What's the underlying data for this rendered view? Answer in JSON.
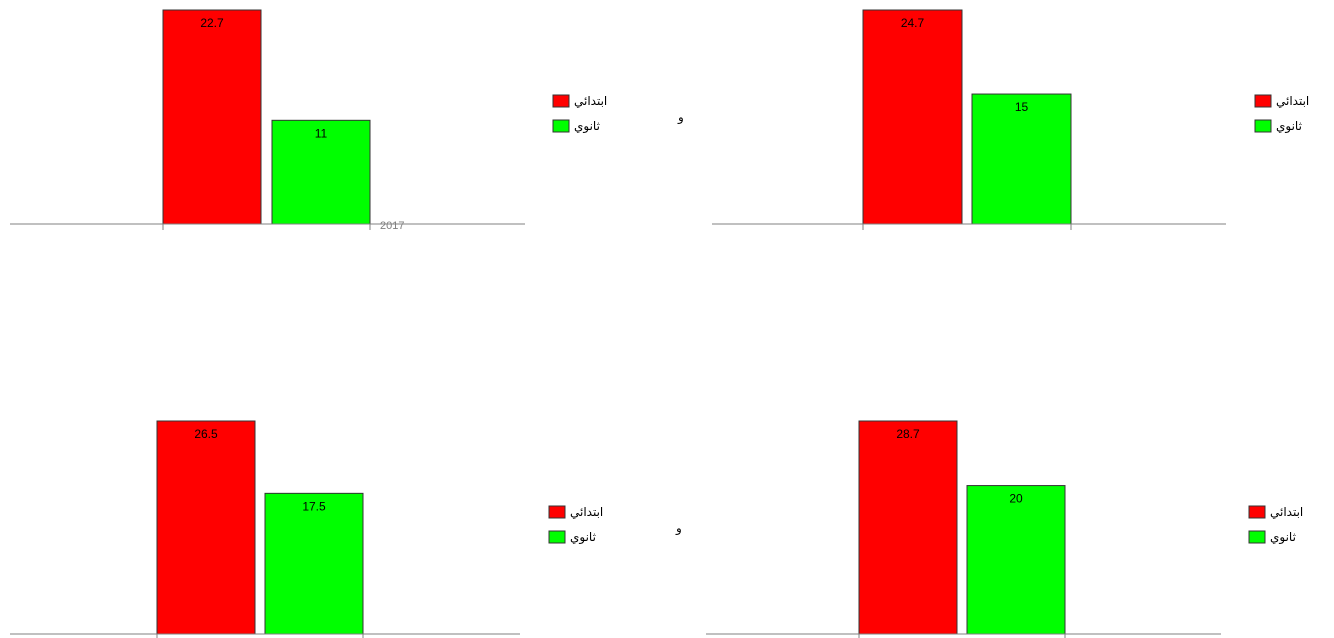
{
  "chart_data": [
    {
      "type": "bar",
      "categories": [
        ""
      ],
      "series": [
        {
          "name": "ابتدائي",
          "values": [
            22.7
          ],
          "color": "#ff0000"
        },
        {
          "name": "ثانوي",
          "values": [
            11
          ],
          "color": "#00ff00"
        }
      ],
      "x_tick_labels": [
        "2017"
      ],
      "value_labels": [
        "22.7",
        "11"
      ],
      "legend_position": "right",
      "stray_mark": "و",
      "grid": false
    },
    {
      "type": "bar",
      "categories": [
        ""
      ],
      "series": [
        {
          "name": "ابتدائي",
          "values": [
            24.7
          ],
          "color": "#ff0000"
        },
        {
          "name": "ثانوي",
          "values": [
            15
          ],
          "color": "#00ff00"
        }
      ],
      "x_tick_labels": [],
      "value_labels": [
        "24.7",
        "15"
      ],
      "legend_position": "right",
      "stray_mark": "",
      "grid": false
    },
    {
      "type": "bar",
      "categories": [
        ""
      ],
      "series": [
        {
          "name": "ابتدائي",
          "values": [
            26.5
          ],
          "color": "#ff0000"
        },
        {
          "name": "ثانوي",
          "values": [
            17.5
          ],
          "color": "#00ff00"
        }
      ],
      "x_tick_labels": [],
      "value_labels": [
        "26.5",
        "17.5"
      ],
      "legend_position": "right",
      "stray_mark": "و",
      "grid": false
    },
    {
      "type": "bar",
      "categories": [
        ""
      ],
      "series": [
        {
          "name": "ابتدائي",
          "values": [
            28.7
          ],
          "color": "#ff0000"
        },
        {
          "name": "ثانوي",
          "values": [
            20
          ],
          "color": "#00ff00"
        }
      ],
      "x_tick_labels": [],
      "value_labels": [
        "28.7",
        "20"
      ],
      "legend_position": "right",
      "stray_mark": "",
      "grid": false
    }
  ]
}
